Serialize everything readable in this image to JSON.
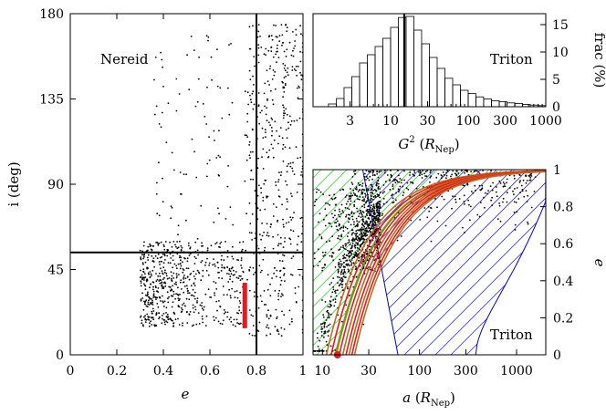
{
  "chart_data": [
    {
      "type": "scatter",
      "annotation": "Nereid",
      "xlabel": "e",
      "ylabel": "i (deg)",
      "xlim": [
        0,
        1
      ],
      "ylim": [
        0,
        180
      ],
      "x_ticks": [
        "0",
        "0.2",
        "0.4",
        "0.6",
        "0.8",
        "1"
      ],
      "y_ticks": [
        "0",
        "45",
        "90",
        "135",
        "180"
      ],
      "reference_lines": {
        "vertical_e": 0.8,
        "horizontal_i_deg": 54
      },
      "highlight_segment": {
        "e": 0.75,
        "i_range_deg": [
          14,
          38
        ],
        "color": "#e41a1c"
      },
      "point_color": "#000000",
      "grid": false
    },
    {
      "type": "bar",
      "annotation": "Triton",
      "xlabel_main": "G",
      "xlabel_sup": "2",
      "xlabel_unit": "R",
      "xlabel_unit_sub": "Nep",
      "ylabel": "frac (%)",
      "xscale": "log",
      "xlim": [
        1,
        1000
      ],
      "ylim": [
        0,
        17
      ],
      "x_ticks": [
        "3",
        "10",
        "30",
        "100",
        "300",
        "1000"
      ],
      "y_ticks": [
        "0",
        "5",
        "10",
        "15"
      ],
      "bin_edges": [
        1.58,
        2.0,
        2.51,
        3.16,
        3.98,
        5.01,
        6.31,
        7.94,
        10.0,
        12.6,
        15.8,
        20.0,
        25.1,
        31.6,
        39.8,
        50.1,
        63.1,
        79.4,
        100,
        126,
        158,
        200,
        251,
        316,
        398,
        501,
        631,
        794,
        1000
      ],
      "values": [
        0.5,
        1.5,
        3.5,
        5.5,
        8.0,
        9.5,
        11.0,
        12.5,
        14.5,
        16.3,
        16.5,
        14.0,
        11.5,
        9.0,
        7.0,
        5.2,
        4.0,
        3.0,
        2.4,
        1.8,
        1.4,
        1.1,
        0.9,
        0.7,
        0.6,
        0.4,
        0.3,
        0.2
      ],
      "marker_line_x": 15,
      "grid": false
    },
    {
      "type": "scatter",
      "annotation": "Triton",
      "xlabel_main": "a",
      "xlabel_unit": "R",
      "xlabel_unit_sub": "Nep",
      "ylabel": "e",
      "xscale": "log",
      "xlim": [
        8,
        2000
      ],
      "ylim": [
        0,
        1
      ],
      "x_ticks": [
        "10",
        "30",
        "100",
        "300",
        "1000"
      ],
      "y_ticks": [
        "0",
        "0.2",
        "0.4",
        "0.6",
        "0.8",
        "1"
      ],
      "regions": [
        {
          "name": "green-hatched",
          "color": "#00cc00"
        },
        {
          "name": "blue-hatched",
          "color": "#0000cc"
        }
      ],
      "red_tracks": {
        "start_a": 14.3,
        "start_e": 0.0,
        "end_e": 1.0,
        "color": "#e41a1c"
      },
      "point_color": "#000000",
      "grid": false
    }
  ]
}
